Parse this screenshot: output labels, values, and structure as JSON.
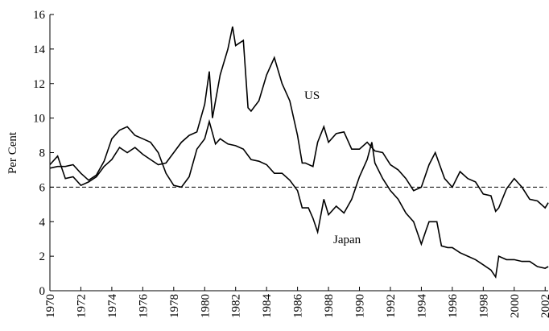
{
  "chart_data": {
    "type": "line",
    "y_label": "Per Cent",
    "annotations": [
      "US",
      "Japan"
    ],
    "reference_line": 6,
    "xlim": [
      1970,
      2002.3
    ],
    "xticks": [
      1970,
      1972,
      1974,
      1976,
      1978,
      1980,
      1982,
      1984,
      1986,
      1988,
      1990,
      1992,
      1994,
      1996,
      1998,
      2000,
      2002
    ],
    "ylim": [
      0,
      16
    ],
    "yticks": [
      0,
      2,
      4,
      6,
      8,
      10,
      12,
      14,
      16
    ],
    "series": [
      {
        "name": "US",
        "color": "#000000",
        "x": [
          1970,
          1970.5,
          1971,
          1971.5,
          1972,
          1972.5,
          1973,
          1973.5,
          1974,
          1974.5,
          1975,
          1975.5,
          1976,
          1976.5,
          1977,
          1977.5,
          1978,
          1978.5,
          1979,
          1979.5,
          1980,
          1980.3,
          1980.5,
          1981,
          1981.5,
          1981.8,
          1982,
          1982.5,
          1982.8,
          1983,
          1983.5,
          1984,
          1984.5,
          1985,
          1985.5,
          1986,
          1986.3,
          1986.5,
          1987,
          1987.3,
          1987.7,
          1988,
          1988.5,
          1989,
          1989.5,
          1990,
          1990.5,
          1991,
          1991.5,
          1992,
          1992.5,
          1993,
          1993.5,
          1994,
          1994.5,
          1994.9,
          1995.5,
          1996,
          1996.5,
          1997,
          1997.5,
          1998,
          1998.5,
          1998.8,
          1999,
          1999.5,
          2000,
          2000.5,
          2001,
          2001.5,
          2002,
          2002.2
        ],
        "values": [
          7.3,
          7.8,
          6.5,
          6.6,
          6.1,
          6.3,
          6.6,
          7.2,
          7.6,
          8.3,
          8.0,
          8.3,
          7.9,
          7.6,
          7.3,
          7.4,
          8.0,
          8.6,
          9.0,
          9.2,
          10.8,
          12.7,
          10.0,
          12.5,
          14.0,
          15.3,
          14.2,
          14.5,
          10.6,
          10.4,
          11.0,
          12.5,
          13.5,
          12.0,
          11.0,
          9.0,
          7.4,
          7.4,
          7.2,
          8.6,
          9.5,
          8.6,
          9.1,
          9.2,
          8.2,
          8.2,
          8.6,
          8.1,
          8.0,
          7.3,
          7.0,
          6.5,
          5.8,
          6.0,
          7.3,
          8.0,
          6.5,
          6.0,
          6.9,
          6.5,
          6.3,
          5.6,
          5.5,
          4.6,
          4.8,
          5.9,
          6.5,
          6.0,
          5.3,
          5.2,
          4.8,
          5.1
        ]
      },
      {
        "name": "Japan",
        "color": "#000000",
        "x": [
          1970,
          1970.5,
          1971,
          1971.5,
          1972,
          1972.5,
          1973,
          1973.5,
          1974,
          1974.5,
          1975,
          1975.5,
          1976,
          1976.5,
          1977,
          1977.5,
          1978,
          1978.5,
          1979,
          1979.5,
          1980,
          1980.3,
          1980.7,
          1981,
          1981.5,
          1982,
          1982.5,
          1983,
          1983.5,
          1984,
          1984.5,
          1985,
          1985.5,
          1986,
          1986.3,
          1986.7,
          1987,
          1987.3,
          1987.7,
          1988,
          1988.5,
          1989,
          1989.5,
          1990,
          1990.5,
          1990.8,
          1991,
          1991.5,
          1992,
          1992.5,
          1993,
          1993.5,
          1994,
          1994.3,
          1994.5,
          1995,
          1995.3,
          1995.7,
          1996,
          1996.5,
          1997,
          1997.5,
          1998,
          1998.5,
          1998.8,
          1999,
          1999.5,
          2000,
          2000.5,
          2001,
          2001.5,
          2002,
          2002.2
        ],
        "values": [
          7.1,
          7.2,
          7.2,
          7.3,
          6.8,
          6.4,
          6.7,
          7.5,
          8.8,
          9.3,
          9.5,
          9.0,
          8.8,
          8.6,
          8.0,
          6.8,
          6.1,
          6.0,
          6.6,
          8.2,
          8.8,
          9.8,
          8.5,
          8.8,
          8.5,
          8.4,
          8.2,
          7.6,
          7.5,
          7.3,
          6.8,
          6.8,
          6.4,
          5.8,
          4.8,
          4.8,
          4.2,
          3.4,
          5.3,
          4.4,
          4.9,
          4.5,
          5.3,
          6.6,
          7.6,
          8.6,
          7.4,
          6.5,
          5.8,
          5.3,
          4.5,
          4.0,
          2.7,
          3.5,
          4.0,
          4.0,
          2.6,
          2.5,
          2.5,
          2.2,
          2.0,
          1.8,
          1.5,
          1.2,
          0.8,
          2.0,
          1.8,
          1.8,
          1.7,
          1.7,
          1.4,
          1.3,
          1.4
        ]
      }
    ]
  }
}
